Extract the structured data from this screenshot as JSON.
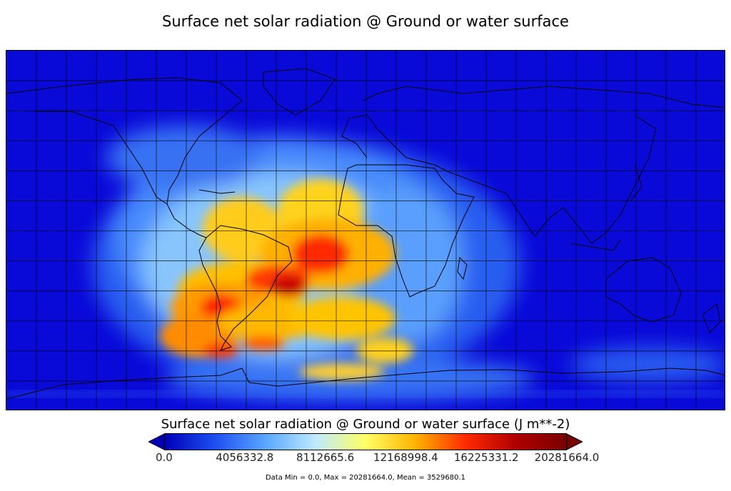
{
  "title": "Surface net solar radiation @ Ground or water surface",
  "colorbar": {
    "label": "Surface net solar radiation @ Ground or water surface (J m**-2)",
    "ticks": [
      "0.0",
      "4056332.8",
      "8112665.6",
      "12168998.4",
      "16225331.2",
      "20281664.0"
    ],
    "min": 0.0,
    "max": 20281664.0,
    "colors": [
      "#0000b8",
      "#1d4ff0",
      "#59a6ff",
      "#bfeaff",
      "#ffff66",
      "#ffb300",
      "#ff2a00",
      "#b00000",
      "#7a0000"
    ],
    "extend": "both"
  },
  "stats": "Data Min = 0.0, Max = 20281664.0, Mean = 3529680.1",
  "map": {
    "projection": "plate carree",
    "grid": true,
    "coastlines": true,
    "background_color": "#0a0ad8"
  }
}
